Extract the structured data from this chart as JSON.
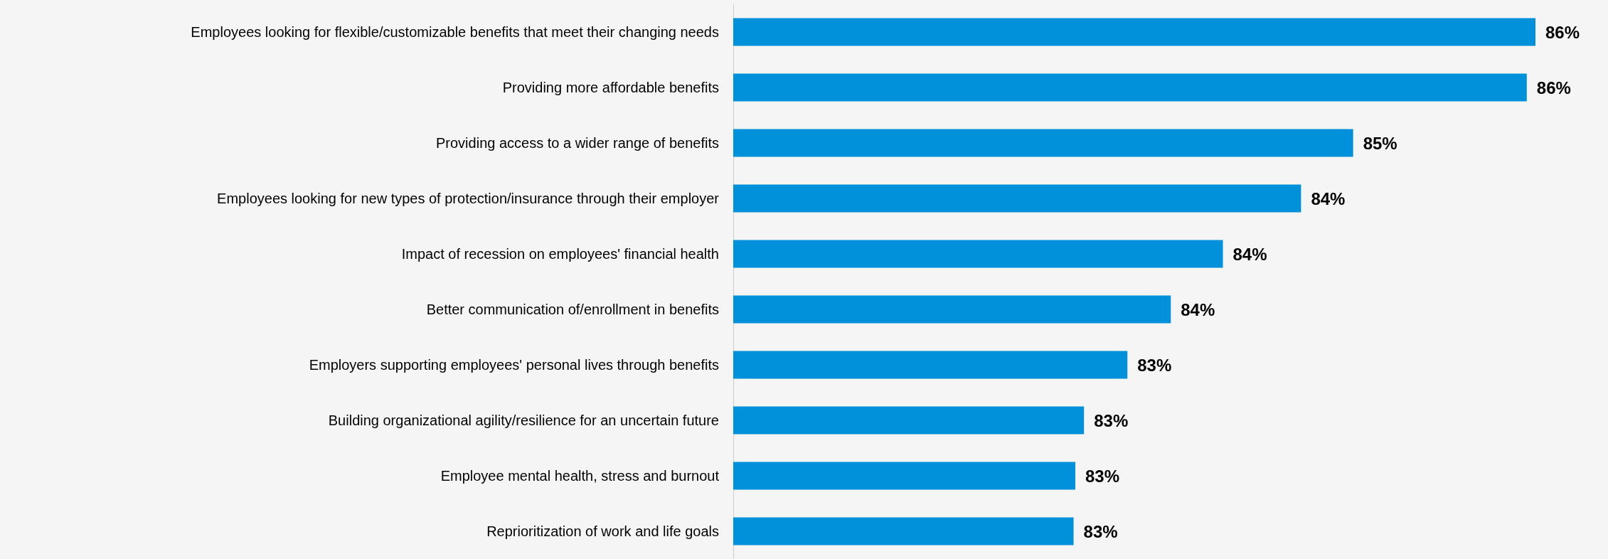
{
  "chart_data": {
    "type": "bar",
    "orientation": "horizontal",
    "categories": [
      "Employees looking for flexible/customizable benefits that meet their changing needs",
      "Providing more affordable benefits",
      "Providing access to a wider range of benefits",
      "Employees looking for new types of protection/insurance through their employer",
      "Impact of recession on employees' financial health",
      "Better communication of/enrollment in benefits",
      "Employers supporting employees' personal lives through benefits",
      "Building organizational agility/resilience for an uncertain future",
      "Employee mental health, stress and burnout",
      "Reprioritization of work and life goals"
    ],
    "values": [
      85.7,
      85.65,
      84.65,
      84.35,
      83.9,
      83.6,
      83.35,
      83.1,
      83.05,
      83.04
    ],
    "value_labels": [
      "86%",
      "86%",
      "85%",
      "84%",
      "84%",
      "84%",
      "83%",
      "83%",
      "83%",
      "83%"
    ],
    "xlim": [
      81.08,
      85.7
    ],
    "color": "#0091da"
  }
}
